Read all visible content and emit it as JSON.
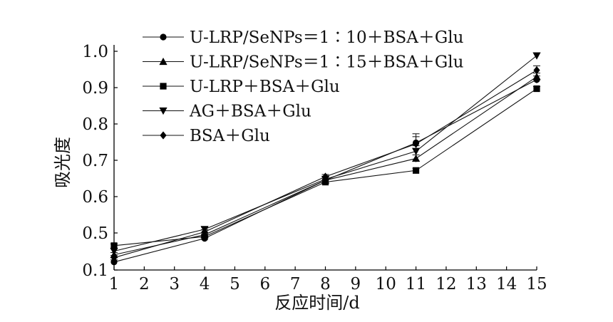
{
  "chart_data": {
    "type": "line",
    "title": "",
    "xlabel": "反应时间/d",
    "ylabel": "吸光度",
    "x_ticks": [
      "1",
      "2",
      "3",
      "4",
      "5",
      "6",
      "7",
      "8",
      "9",
      "10",
      "11",
      "12",
      "13",
      "14",
      "15"
    ],
    "y_ticks": [
      "0.1",
      "0.5",
      "0.6",
      "0.7",
      "0.8",
      "0.9",
      "1.0"
    ],
    "xlim": [
      1,
      15
    ],
    "y_axis_break": {
      "bottom_label": 0.1,
      "continuous_from": 0.4,
      "continuous_to": 1.0
    },
    "grid": false,
    "legend_position": "top-left",
    "x": [
      1,
      4,
      8,
      11,
      15
    ],
    "series": [
      {
        "name": "U-LRP/SeNPs＝1∶10＋BSA＋Glu",
        "marker": "circle",
        "values": [
          0.42,
          0.485,
          0.645,
          0.748,
          0.922
        ],
        "errors": [
          0.006,
          0.006,
          0.006,
          0.025,
          0.01
        ]
      },
      {
        "name": "U-LRP/SeNPs＝1∶15＋BSA＋Glu",
        "marker": "triangle-up",
        "values": [
          0.44,
          0.495,
          0.645,
          0.705,
          0.93
        ],
        "errors": [
          0.006,
          0.006,
          0.006,
          0.01,
          0.01
        ]
      },
      {
        "name": "U-LRP＋BSA＋Glu",
        "marker": "square",
        "values": [
          0.465,
          0.49,
          0.64,
          0.672,
          0.897
        ],
        "errors": [
          0.005,
          0.005,
          0.006,
          0.006,
          0.006
        ]
      },
      {
        "name": "AG＋BSA＋Glu",
        "marker": "triangle-down",
        "values": [
          0.45,
          0.51,
          0.648,
          0.725,
          0.988
        ],
        "errors": [
          0.006,
          0.006,
          0.006,
          0.015,
          0.008
        ]
      },
      {
        "name": "BSA＋Glu",
        "marker": "diamond",
        "values": [
          0.432,
          0.503,
          0.655,
          0.745,
          0.948
        ],
        "errors": [
          0.006,
          0.006,
          0.006,
          0.02,
          0.012
        ]
      }
    ]
  }
}
